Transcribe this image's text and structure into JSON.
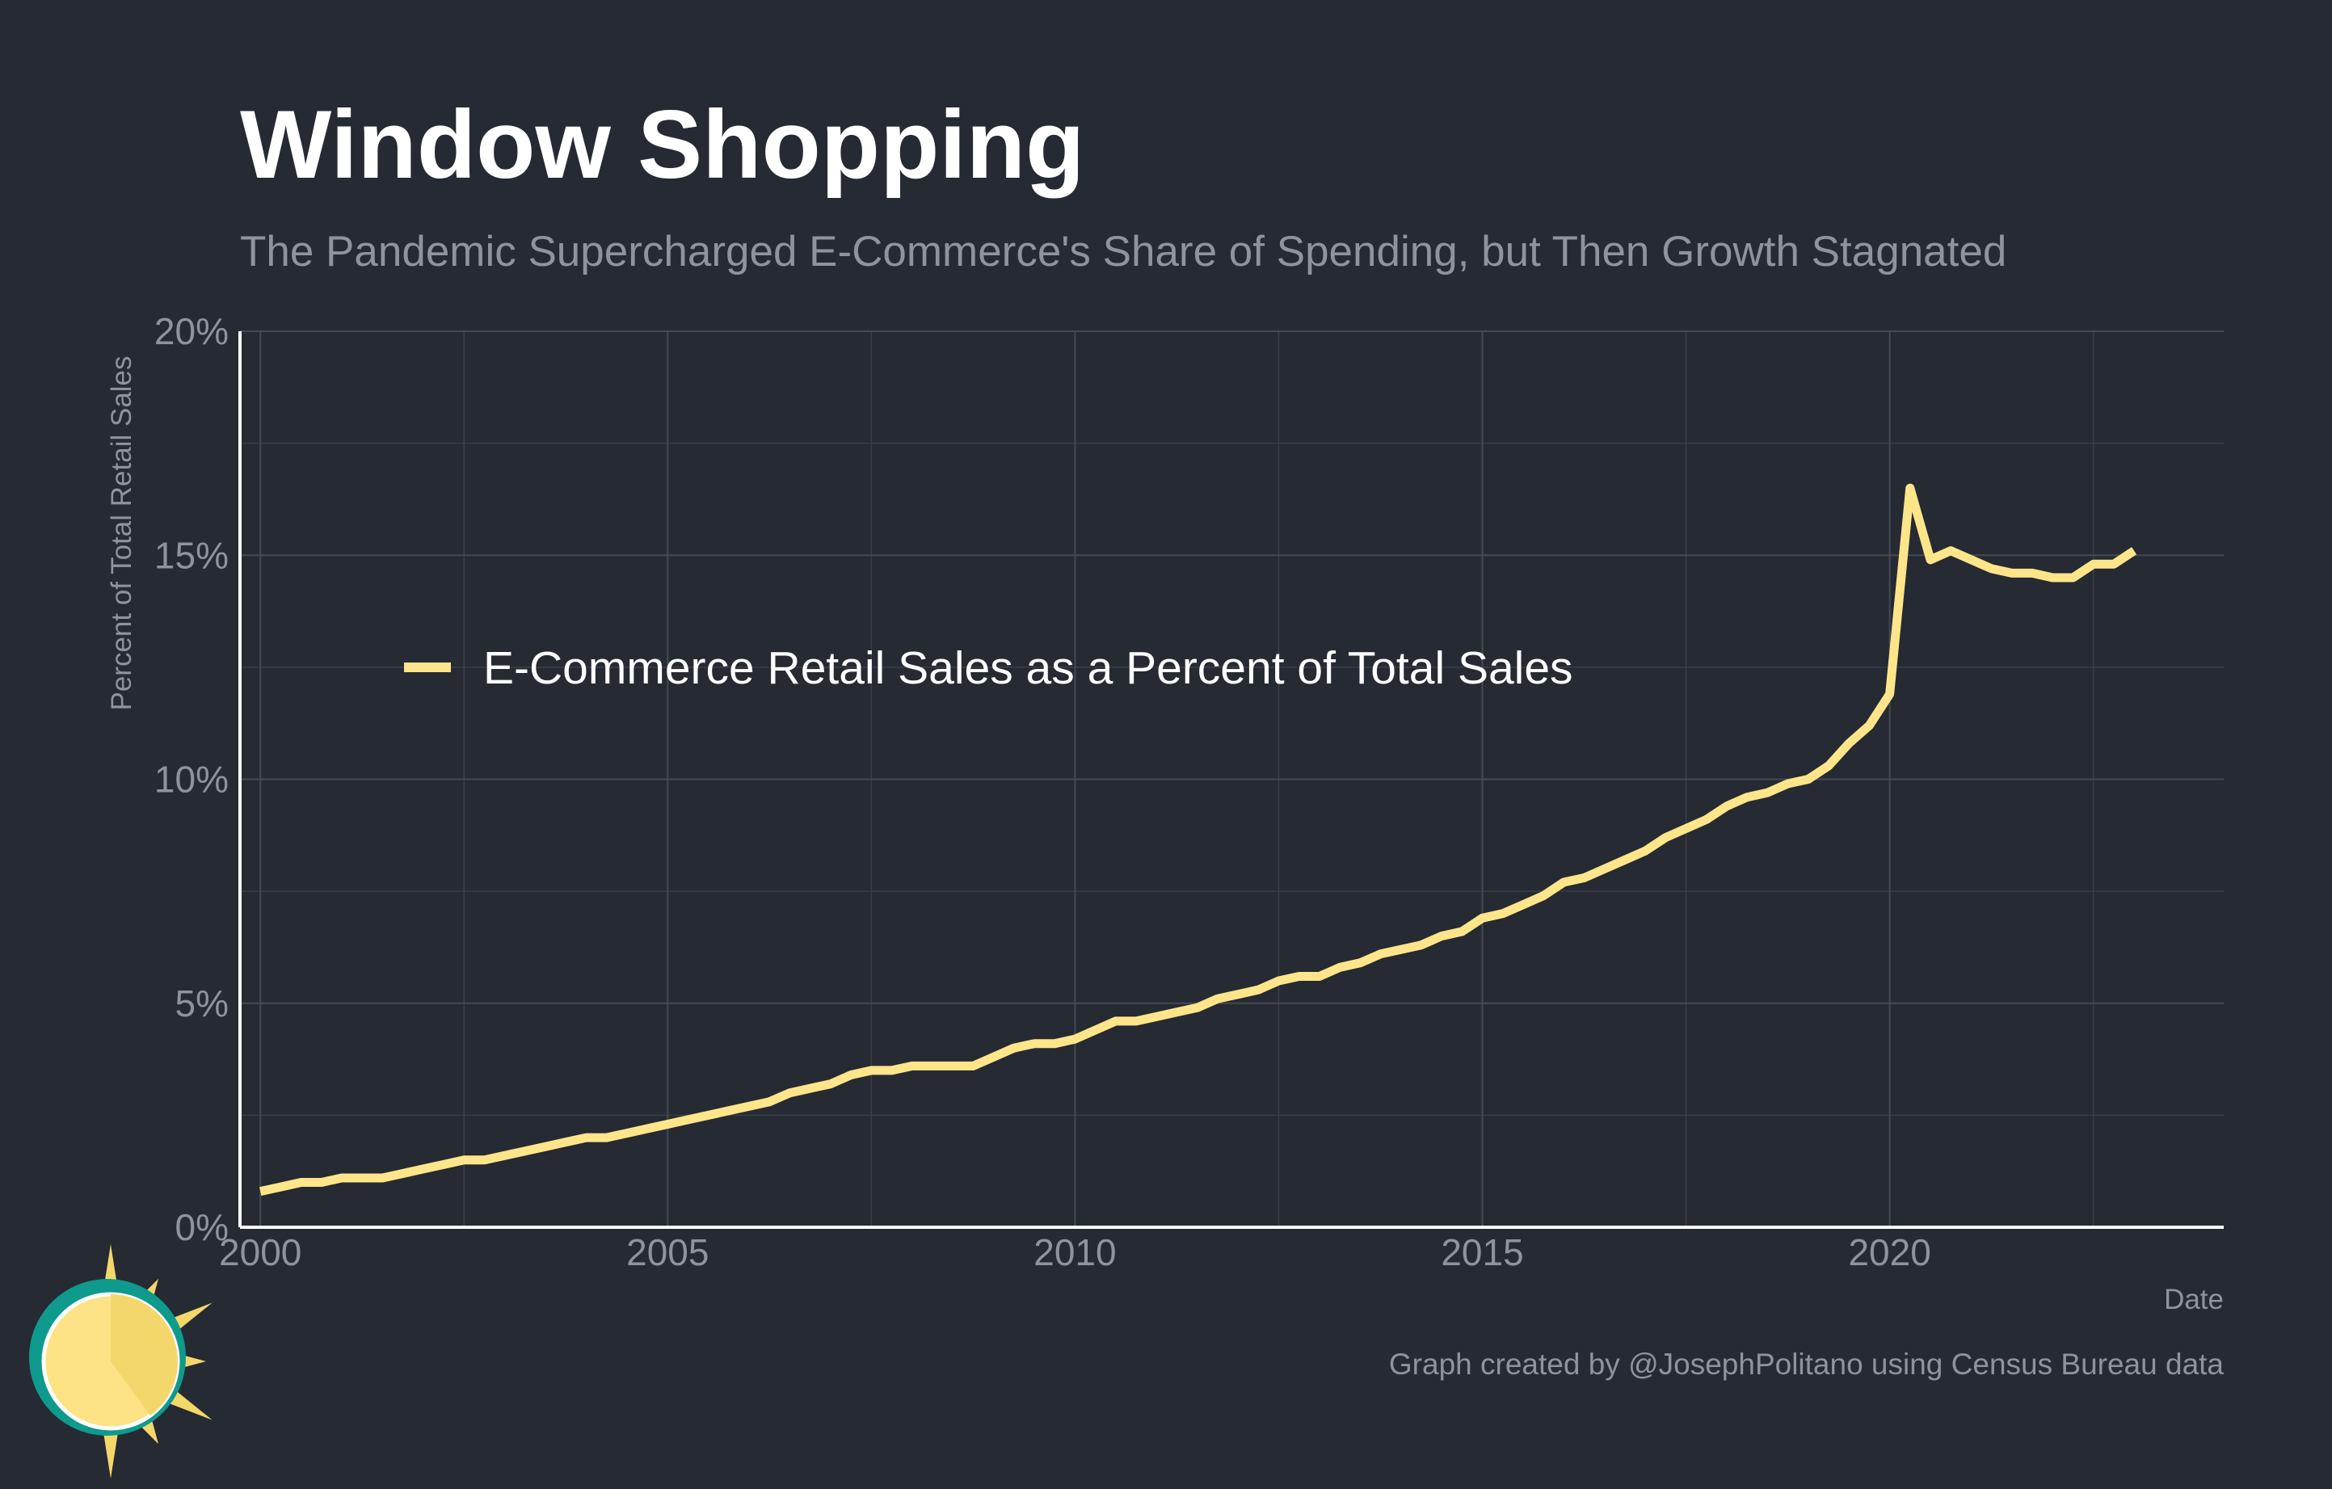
{
  "title": "Window Shopping",
  "subtitle": "The Pandemic Supercharged E-Commerce's Share of Spending, but Then Growth Stagnated",
  "caption": "Graph created by @JosephPolitano using Census Bureau data",
  "colors": {
    "background": "#252a33",
    "series": "#ffe58a",
    "text": "#8f949c",
    "title": "#ffffff",
    "logo_teal": "#0e9a8c",
    "logo_sun": "#fde386"
  },
  "logo": {
    "icon": "sun-logo-icon"
  },
  "chart_data": {
    "type": "line",
    "title": "Window Shopping",
    "subtitle": "The Pandemic Supercharged E-Commerce's Share of Spending, but Then Growth Stagnated",
    "xlabel": "Date",
    "ylabel": "Percent of Total Retail Sales",
    "xlim": [
      1999.75,
      2024.1
    ],
    "ylim": [
      0,
      20
    ],
    "x_ticks": [
      2000,
      2005,
      2010,
      2015,
      2020
    ],
    "x_tick_labels": [
      "2000",
      "2005",
      "2010",
      "2015",
      "2020"
    ],
    "y_ticks": [
      0,
      5,
      10,
      15,
      20
    ],
    "y_tick_labels": [
      "0%",
      "5%",
      "10%",
      "15%",
      "20%"
    ],
    "grid": true,
    "legend": {
      "position": "upper-left"
    },
    "series": [
      {
        "name": "E-Commerce Retail Sales as a Percent of Total Sales",
        "x": [
          2000.0,
          2000.25,
          2000.5,
          2000.75,
          2001.0,
          2001.25,
          2001.5,
          2001.75,
          2002.0,
          2002.25,
          2002.5,
          2002.75,
          2003.0,
          2003.25,
          2003.5,
          2003.75,
          2004.0,
          2004.25,
          2004.5,
          2004.75,
          2005.0,
          2005.25,
          2005.5,
          2005.75,
          2006.0,
          2006.25,
          2006.5,
          2006.75,
          2007.0,
          2007.25,
          2007.5,
          2007.75,
          2008.0,
          2008.25,
          2008.5,
          2008.75,
          2009.0,
          2009.25,
          2009.5,
          2009.75,
          2010.0,
          2010.25,
          2010.5,
          2010.75,
          2011.0,
          2011.25,
          2011.5,
          2011.75,
          2012.0,
          2012.25,
          2012.5,
          2012.75,
          2013.0,
          2013.25,
          2013.5,
          2013.75,
          2014.0,
          2014.25,
          2014.5,
          2014.75,
          2015.0,
          2015.25,
          2015.5,
          2015.75,
          2016.0,
          2016.25,
          2016.5,
          2016.75,
          2017.0,
          2017.25,
          2017.5,
          2017.75,
          2018.0,
          2018.25,
          2018.5,
          2018.75,
          2019.0,
          2019.25,
          2019.5,
          2019.75,
          2020.0,
          2020.25,
          2020.5,
          2020.75,
          2021.0,
          2021.25,
          2021.5,
          2021.75,
          2022.0,
          2022.25,
          2022.5,
          2022.75,
          2023.0
        ],
        "y": [
          0.8,
          0.9,
          1.0,
          1.0,
          1.1,
          1.1,
          1.1,
          1.2,
          1.3,
          1.4,
          1.5,
          1.5,
          1.6,
          1.7,
          1.8,
          1.9,
          2.0,
          2.0,
          2.1,
          2.2,
          2.3,
          2.4,
          2.5,
          2.6,
          2.7,
          2.8,
          3.0,
          3.1,
          3.2,
          3.4,
          3.5,
          3.5,
          3.6,
          3.6,
          3.6,
          3.6,
          3.8,
          4.0,
          4.1,
          4.1,
          4.2,
          4.4,
          4.6,
          4.6,
          4.7,
          4.8,
          4.9,
          5.1,
          5.2,
          5.3,
          5.5,
          5.6,
          5.6,
          5.8,
          5.9,
          6.1,
          6.2,
          6.3,
          6.5,
          6.6,
          6.9,
          7.0,
          7.2,
          7.4,
          7.7,
          7.8,
          8.0,
          8.2,
          8.4,
          8.7,
          8.9,
          9.1,
          9.4,
          9.6,
          9.7,
          9.9,
          10.0,
          10.3,
          10.8,
          11.2,
          11.9,
          16.5,
          14.9,
          15.1,
          14.9,
          14.7,
          14.6,
          14.6,
          14.5,
          14.5,
          14.8,
          14.8,
          15.1
        ]
      }
    ]
  }
}
